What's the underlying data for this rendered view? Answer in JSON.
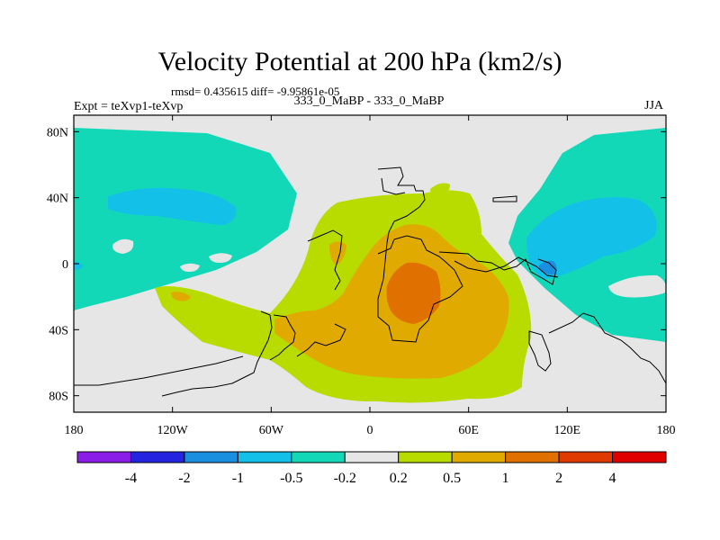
{
  "title": "Velocity Potential at 200 hPa (km2/s)",
  "stats": "rmsd= 0.435615 diff= -9.95861e-05",
  "experiment_label": "Expt = teXvp1-teXvp",
  "cases_label": "333_0_MaBP - 333_0_MaBP",
  "season": "JJA",
  "map": {
    "projection": "cylindrical equidistant",
    "lon_range": [
      -180,
      180
    ],
    "lat_range": [
      -90,
      90
    ],
    "lat_ticks": [
      "80N",
      "40N",
      "0",
      "40S",
      "80S"
    ],
    "lon_ticks": [
      "180",
      "120W",
      "60W",
      "0",
      "60E",
      "120E",
      "180"
    ]
  },
  "colors": {
    "below_neg4": "#8a1ee8",
    "neg4_neg2": "#2424e0",
    "neg2_neg1": "#1a8fe0",
    "neg1_neg05": "#12c0e8",
    "neg05_neg02": "#13d8b8",
    "neg02_02": "#e6e6e6",
    "p02_p05": "#b8db00",
    "p05_p1": "#e0aa00",
    "p1_p2": "#e07000",
    "p2_p4": "#e03a00",
    "above_p4": "#e00000"
  },
  "colorbar": {
    "labels": [
      "-4",
      "-2",
      "-1",
      "-0.5",
      "-0.2",
      "0.2",
      "0.5",
      "1",
      "2",
      "4"
    ],
    "colors": [
      "#8a1ee8",
      "#2424e0",
      "#1a8fe0",
      "#12c0e8",
      "#13d8b8",
      "#e6e6e6",
      "#b8db00",
      "#e0aa00",
      "#e07000",
      "#e03a00",
      "#e00000"
    ]
  }
}
